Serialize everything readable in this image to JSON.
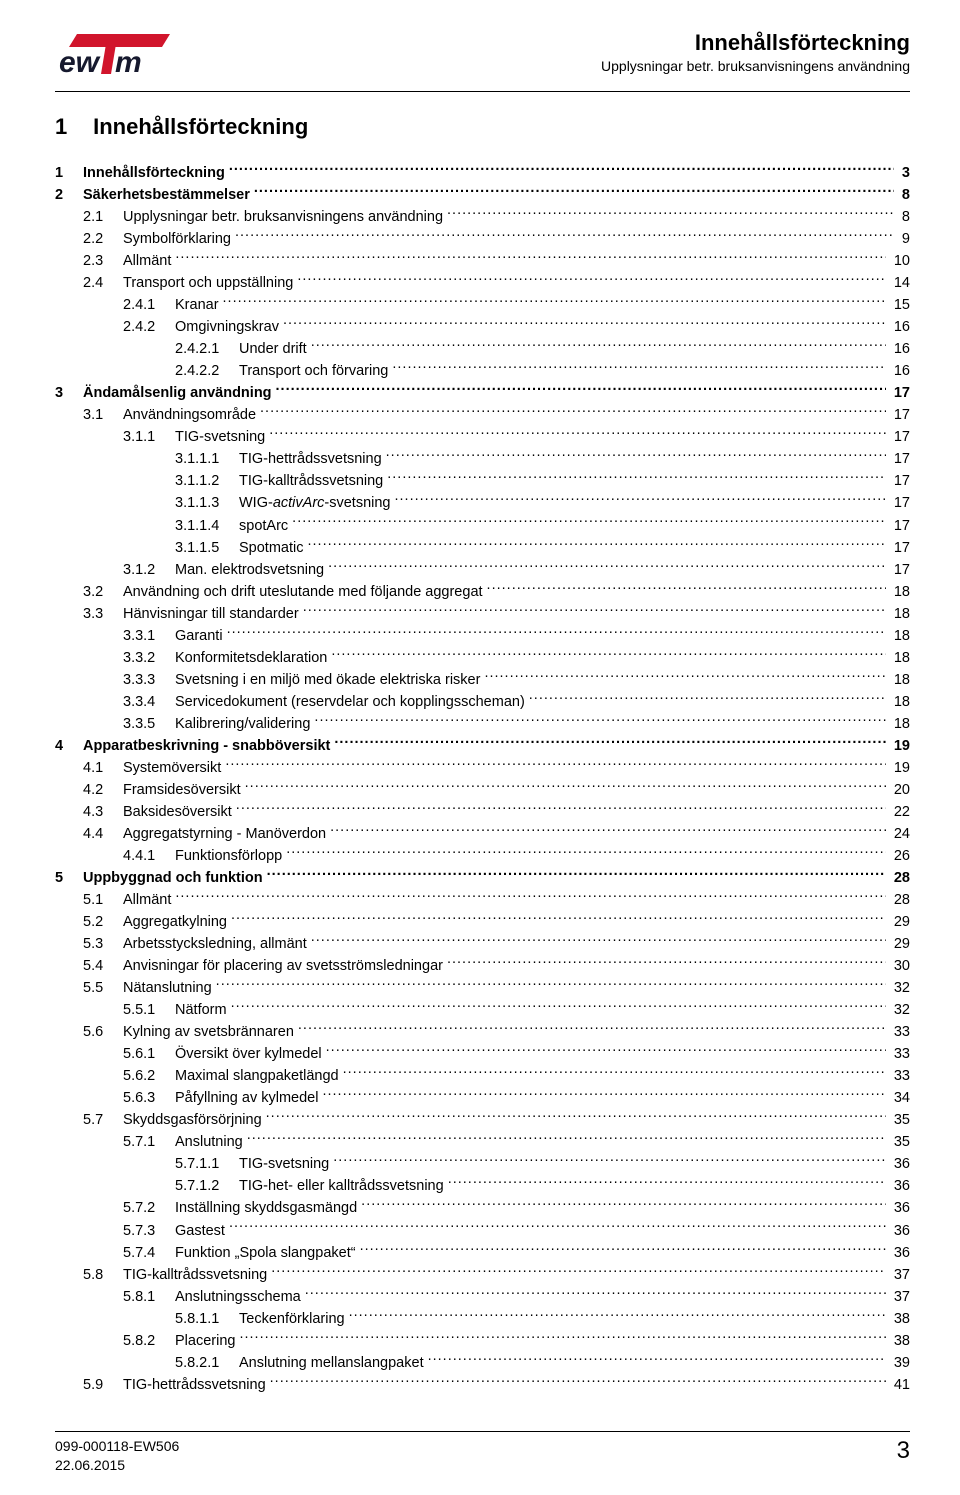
{
  "header": {
    "title": "Innehållsförteckning",
    "subtitle": "Upplysningar betr. bruksanvisningens användning"
  },
  "logo": {
    "bar_color": "#d1152c",
    "text_color": "#16192e",
    "bg_color": "#ffffff"
  },
  "main_title": {
    "num": "1",
    "text": "Innehållsförteckning"
  },
  "toc": [
    {
      "indent": 0,
      "bold": true,
      "num": "1",
      "label": "Innehållsförteckning",
      "page": "3"
    },
    {
      "indent": 0,
      "bold": true,
      "num": "2",
      "label": "Säkerhetsbestämmelser",
      "page": "8"
    },
    {
      "indent": 1,
      "num": "2.1",
      "label": "Upplysningar betr. bruksanvisningens användning",
      "page": "8"
    },
    {
      "indent": 1,
      "num": "2.2",
      "label": "Symbolförklaring",
      "page": "9"
    },
    {
      "indent": 1,
      "num": "2.3",
      "label": "Allmänt",
      "page": "10"
    },
    {
      "indent": 1,
      "num": "2.4",
      "label": "Transport och uppställning",
      "page": "14"
    },
    {
      "indent": 2,
      "num": "2.4.1",
      "label": "Kranar",
      "page": "15"
    },
    {
      "indent": 2,
      "num": "2.4.2",
      "label": "Omgivningskrav",
      "page": "16"
    },
    {
      "indent": 3,
      "num": "2.4.2.1",
      "label": "Under drift",
      "page": "16"
    },
    {
      "indent": 3,
      "num": "2.4.2.2",
      "label": "Transport och förvaring",
      "page": "16"
    },
    {
      "indent": 0,
      "bold": true,
      "num": "3",
      "label": "Ändamålsenlig användning",
      "page": "17"
    },
    {
      "indent": 1,
      "num": "3.1",
      "label": "Användningsområde",
      "page": "17"
    },
    {
      "indent": 2,
      "num": "3.1.1",
      "label": "TIG-svetsning",
      "page": "17"
    },
    {
      "indent": 3,
      "num": "3.1.1.1",
      "label": "TIG-hettrådssvetsning",
      "page": "17"
    },
    {
      "indent": 3,
      "num": "3.1.1.2",
      "label": "TIG-kalltrådssvetsning",
      "page": "17"
    },
    {
      "indent": 3,
      "num": "3.1.1.3",
      "label": "WIG-",
      "italic_suffix": "activArc",
      "label_tail": "-svetsning",
      "page": "17"
    },
    {
      "indent": 3,
      "num": "3.1.1.4",
      "label": "spotArc",
      "page": "17"
    },
    {
      "indent": 3,
      "num": "3.1.1.5",
      "label": "Spotmatic",
      "page": "17"
    },
    {
      "indent": 2,
      "num": "3.1.2",
      "label": "Man. elektrodsvetsning",
      "page": "17"
    },
    {
      "indent": 1,
      "num": "3.2",
      "label": "Användning och drift uteslutande med följande aggregat",
      "page": "18"
    },
    {
      "indent": 1,
      "num": "3.3",
      "label": "Hänvisningar till standarder",
      "page": "18"
    },
    {
      "indent": 2,
      "num": "3.3.1",
      "label": "Garanti",
      "page": "18"
    },
    {
      "indent": 2,
      "num": "3.3.2",
      "label": "Konformitetsdeklaration",
      "page": "18"
    },
    {
      "indent": 2,
      "num": "3.3.3",
      "label": "Svetsning i en miljö med ökade elektriska risker",
      "page": "18"
    },
    {
      "indent": 2,
      "num": "3.3.4",
      "label": "Servicedokument (reservdelar och kopplingsscheman)",
      "page": "18"
    },
    {
      "indent": 2,
      "num": "3.3.5",
      "label": "Kalibrering/validering",
      "page": "18"
    },
    {
      "indent": 0,
      "bold": true,
      "num": "4",
      "label": "Apparatbeskrivning - snabböversikt",
      "page": "19"
    },
    {
      "indent": 1,
      "num": "4.1",
      "label": "Systemöversikt",
      "page": "19"
    },
    {
      "indent": 1,
      "num": "4.2",
      "label": "Framsidesöversikt",
      "page": "20"
    },
    {
      "indent": 1,
      "num": "4.3",
      "label": "Baksidesöversikt",
      "page": "22"
    },
    {
      "indent": 1,
      "num": "4.4",
      "label": "Aggregatstyrning - Manöverdon",
      "page": "24"
    },
    {
      "indent": 2,
      "num": "4.4.1",
      "label": "Funktionsförlopp",
      "page": "26"
    },
    {
      "indent": 0,
      "bold": true,
      "num": "5",
      "label": "Uppbyggnad och funktion",
      "page": "28"
    },
    {
      "indent": 1,
      "num": "5.1",
      "label": "Allmänt",
      "page": "28"
    },
    {
      "indent": 1,
      "num": "5.2",
      "label": "Aggregatkylning",
      "page": "29"
    },
    {
      "indent": 1,
      "num": "5.3",
      "label": "Arbetsstycksledning, allmänt",
      "page": "29"
    },
    {
      "indent": 1,
      "num": "5.4",
      "label": "Anvisningar för placering av svetsströmsledningar",
      "page": "30"
    },
    {
      "indent": 1,
      "num": "5.5",
      "label": "Nätanslutning",
      "page": "32"
    },
    {
      "indent": 2,
      "num": "5.5.1",
      "label": "Nätform",
      "page": "32"
    },
    {
      "indent": 1,
      "num": "5.6",
      "label": "Kylning av svetsbrännaren",
      "page": "33"
    },
    {
      "indent": 2,
      "num": "5.6.1",
      "label": "Översikt över kylmedel",
      "page": "33"
    },
    {
      "indent": 2,
      "num": "5.6.2",
      "label": "Maximal slangpaketlängd",
      "page": "33"
    },
    {
      "indent": 2,
      "num": "5.6.3",
      "label": "Påfyllning av kylmedel",
      "page": "34"
    },
    {
      "indent": 1,
      "num": "5.7",
      "label": "Skyddsgasförsörjning",
      "page": "35"
    },
    {
      "indent": 2,
      "num": "5.7.1",
      "label": "Anslutning",
      "page": "35"
    },
    {
      "indent": 3,
      "num": "5.7.1.1",
      "label": "TIG-svetsning",
      "page": "36"
    },
    {
      "indent": 3,
      "num": "5.7.1.2",
      "label": "TIG-het- eller kalltrådssvetsning",
      "page": "36"
    },
    {
      "indent": 2,
      "num": "5.7.2",
      "label": "Inställning skyddsgasmängd",
      "page": "36"
    },
    {
      "indent": 2,
      "num": "5.7.3",
      "label": "Gastest",
      "page": "36"
    },
    {
      "indent": 2,
      "num": "5.7.4",
      "label": "Funktion „Spola slangpaket“",
      "page": "36"
    },
    {
      "indent": 1,
      "num": "5.8",
      "label": "TIG-kalltrådssvetsning",
      "page": "37"
    },
    {
      "indent": 2,
      "num": "5.8.1",
      "label": "Anslutningsschema",
      "page": "37"
    },
    {
      "indent": 3,
      "num": "5.8.1.1",
      "label": "Teckenförklaring",
      "page": "38"
    },
    {
      "indent": 2,
      "num": "5.8.2",
      "label": "Placering",
      "page": "38"
    },
    {
      "indent": 3,
      "num": "5.8.2.1",
      "label": "Anslutning mellanslangpaket",
      "page": "39"
    },
    {
      "indent": 1,
      "num": "5.9",
      "label": "TIG-hettrådssvetsning",
      "page": "41"
    }
  ],
  "footer": {
    "doc_id": "099-000118-EW506",
    "date": "22.06.2015",
    "page": "3"
  }
}
